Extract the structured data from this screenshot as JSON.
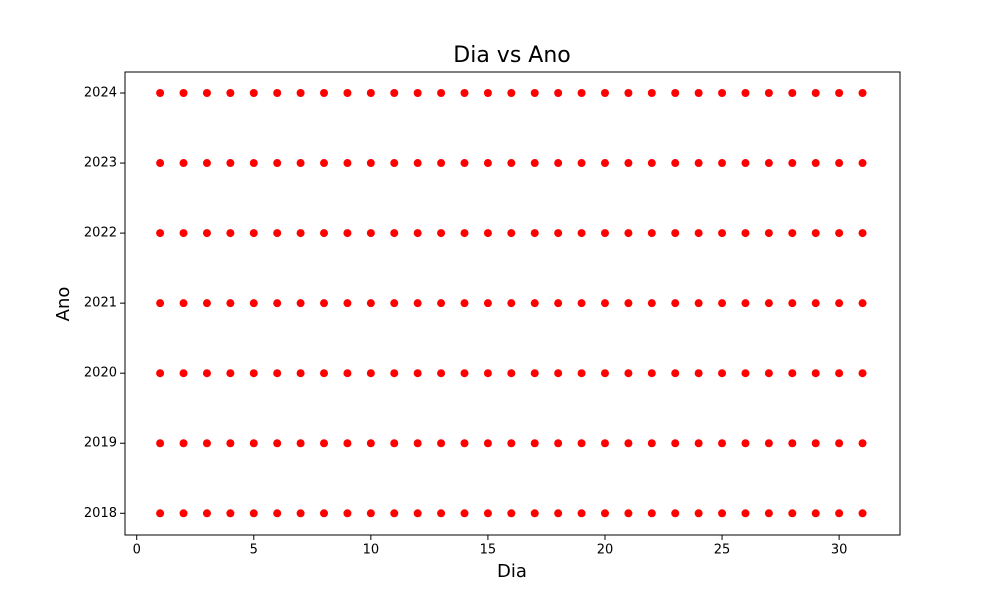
{
  "chart_data": {
    "type": "scatter",
    "title": "Dia vs Ano",
    "x_label": "Dia",
    "y_label": "Ano",
    "color": "#ff0000",
    "grid": false,
    "xlim": [
      -0.5,
      32.6
    ],
    "ylim": [
      2017.69,
      2024.3
    ],
    "xticks": [
      0,
      5,
      10,
      15,
      20,
      25,
      30
    ],
    "yticks": [
      2018,
      2019,
      2020,
      2021,
      2022,
      2023,
      2024
    ],
    "x": [
      1,
      2,
      3,
      4,
      5,
      6,
      7,
      8,
      9,
      10,
      11,
      12,
      13,
      14,
      15,
      16,
      17,
      18,
      19,
      20,
      21,
      22,
      23,
      24,
      25,
      26,
      27,
      28,
      29,
      30,
      31,
      1,
      2,
      3,
      4,
      5,
      6,
      7,
      8,
      9,
      10,
      11,
      12,
      13,
      14,
      15,
      16,
      17,
      18,
      19,
      20,
      21,
      22,
      23,
      24,
      25,
      26,
      27,
      28,
      29,
      30,
      31,
      1,
      2,
      3,
      4,
      5,
      6,
      7,
      8,
      9,
      10,
      11,
      12,
      13,
      14,
      15,
      16,
      17,
      18,
      19,
      20,
      21,
      22,
      23,
      24,
      25,
      26,
      27,
      28,
      29,
      30,
      31,
      1,
      2,
      3,
      4,
      5,
      6,
      7,
      8,
      9,
      10,
      11,
      12,
      13,
      14,
      15,
      16,
      17,
      18,
      19,
      20,
      21,
      22,
      23,
      24,
      25,
      26,
      27,
      28,
      29,
      30,
      31,
      1,
      2,
      3,
      4,
      5,
      6,
      7,
      8,
      9,
      10,
      11,
      12,
      13,
      14,
      15,
      16,
      17,
      18,
      19,
      20,
      21,
      22,
      23,
      24,
      25,
      26,
      27,
      28,
      29,
      30,
      31,
      1,
      2,
      3,
      4,
      5,
      6,
      7,
      8,
      9,
      10,
      11,
      12,
      13,
      14,
      15,
      16,
      17,
      18,
      19,
      20,
      21,
      22,
      23,
      24,
      25,
      26,
      27,
      28,
      29,
      30,
      31,
      1,
      2,
      3,
      4,
      5,
      6,
      7,
      8,
      9,
      10,
      11,
      12,
      13,
      14,
      15,
      16,
      17,
      18,
      19,
      20,
      21,
      22,
      23,
      24,
      25,
      26,
      27,
      28,
      29,
      30,
      31
    ],
    "y": [
      2018,
      2018,
      2018,
      2018,
      2018,
      2018,
      2018,
      2018,
      2018,
      2018,
      2018,
      2018,
      2018,
      2018,
      2018,
      2018,
      2018,
      2018,
      2018,
      2018,
      2018,
      2018,
      2018,
      2018,
      2018,
      2018,
      2018,
      2018,
      2018,
      2018,
      2018,
      2019,
      2019,
      2019,
      2019,
      2019,
      2019,
      2019,
      2019,
      2019,
      2019,
      2019,
      2019,
      2019,
      2019,
      2019,
      2019,
      2019,
      2019,
      2019,
      2019,
      2019,
      2019,
      2019,
      2019,
      2019,
      2019,
      2019,
      2019,
      2019,
      2019,
      2019,
      2020,
      2020,
      2020,
      2020,
      2020,
      2020,
      2020,
      2020,
      2020,
      2020,
      2020,
      2020,
      2020,
      2020,
      2020,
      2020,
      2020,
      2020,
      2020,
      2020,
      2020,
      2020,
      2020,
      2020,
      2020,
      2020,
      2020,
      2020,
      2020,
      2020,
      2020,
      2021,
      2021,
      2021,
      2021,
      2021,
      2021,
      2021,
      2021,
      2021,
      2021,
      2021,
      2021,
      2021,
      2021,
      2021,
      2021,
      2021,
      2021,
      2021,
      2021,
      2021,
      2021,
      2021,
      2021,
      2021,
      2021,
      2021,
      2021,
      2021,
      2021,
      2021,
      2022,
      2022,
      2022,
      2022,
      2022,
      2022,
      2022,
      2022,
      2022,
      2022,
      2022,
      2022,
      2022,
      2022,
      2022,
      2022,
      2022,
      2022,
      2022,
      2022,
      2022,
      2022,
      2022,
      2022,
      2022,
      2022,
      2022,
      2022,
      2022,
      2022,
      2022,
      2023,
      2023,
      2023,
      2023,
      2023,
      2023,
      2023,
      2023,
      2023,
      2023,
      2023,
      2023,
      2023,
      2023,
      2023,
      2023,
      2023,
      2023,
      2023,
      2023,
      2023,
      2023,
      2023,
      2023,
      2023,
      2023,
      2023,
      2023,
      2023,
      2023,
      2023,
      2024,
      2024,
      2024,
      2024,
      2024,
      2024,
      2024,
      2024,
      2024,
      2024,
      2024,
      2024,
      2024,
      2024,
      2024,
      2024,
      2024,
      2024,
      2024,
      2024,
      2024,
      2024,
      2024,
      2024,
      2024,
      2024,
      2024,
      2024,
      2024,
      2024,
      2024
    ]
  }
}
